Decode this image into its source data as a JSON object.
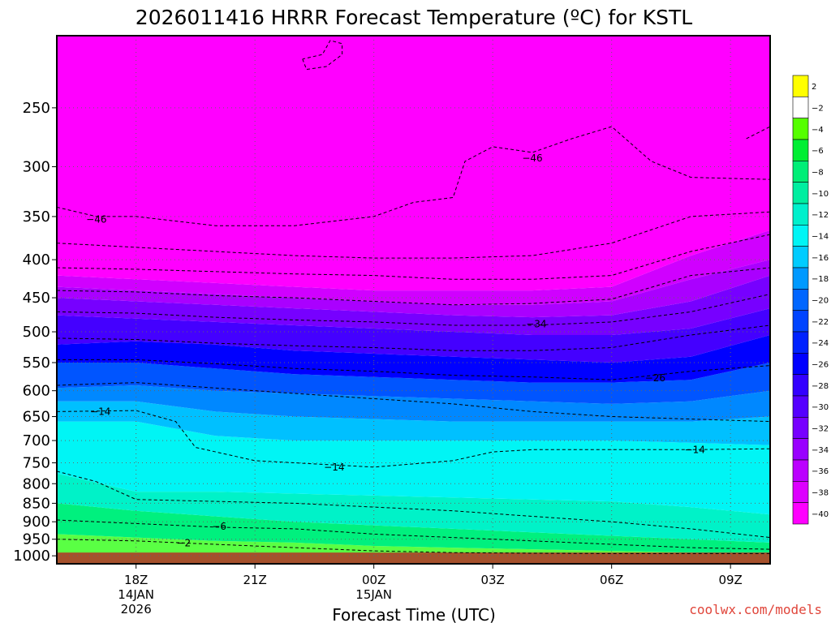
{
  "chart_data": {
    "type": "heatmap",
    "title": "2026011416 HRRR Forecast Temperature (ºC) for KSTL",
    "xlabel": "Forecast Time (UTC)",
    "ylabel": "",
    "credit": "coolwx.com/models",
    "x_ticks": [
      {
        "hour": 18,
        "label": "18Z",
        "date": "14JAN",
        "year": "2026"
      },
      {
        "hour": 21,
        "label": "21Z"
      },
      {
        "hour": 24,
        "label": "00Z",
        "date": "15JAN"
      },
      {
        "hour": 27,
        "label": "03Z"
      },
      {
        "hour": 30,
        "label": "06Z"
      },
      {
        "hour": 33,
        "label": "09Z"
      }
    ],
    "x_range_hours": [
      16,
      34
    ],
    "y_axis": {
      "scale": "log",
      "inverted": true,
      "range_hpa": [
        1025,
        200
      ]
    },
    "y_ticks": [
      250,
      300,
      350,
      400,
      450,
      500,
      550,
      600,
      650,
      700,
      750,
      800,
      850,
      900,
      950,
      1000
    ],
    "colorbar": {
      "levels": [
        2,
        -2,
        -4,
        -6,
        -8,
        -10,
        -12,
        -14,
        -16,
        -18,
        -20,
        -22,
        -24,
        -26,
        -28,
        -30,
        -32,
        -34,
        -36,
        -38,
        -40
      ],
      "colors": [
        "#ffff00",
        "#ffffff",
        "#55ff00",
        "#00ee33",
        "#00ee77",
        "#00eea0",
        "#00f0cc",
        "#00f5f5",
        "#00ccff",
        "#0099ff",
        "#0066ff",
        "#0044ff",
        "#0022ff",
        "#0000ff",
        "#3300ff",
        "#5500ff",
        "#7700ff",
        "#9900ff",
        "#bb00ff",
        "#dd00ff",
        "#ff00ff"
      ]
    },
    "band_colors": [
      "#5aff44",
      "#00f07e",
      "#00f2c8",
      "#00f5f5",
      "#00c0ff",
      "#0088ff",
      "#0055ff",
      "#0000ff",
      "#4400ff",
      "#7700ff",
      "#aa00ff",
      "#d000ff",
      "#ff00ff"
    ],
    "band_tops_hpa": [
      {
        "hour": 16,
        "tops": [
          935,
          850,
          775,
          660,
          620,
          595,
          550,
          520,
          475,
          450,
          435,
          420
        ]
      },
      {
        "hour": 18,
        "tops": [
          945,
          870,
          820,
          660,
          620,
          590,
          550,
          515,
          480,
          455,
          440,
          425
        ]
      },
      {
        "hour": 20,
        "tops": [
          955,
          885,
          820,
          690,
          640,
          600,
          560,
          520,
          485,
          460,
          445,
          430
        ]
      },
      {
        "hour": 22,
        "tops": [
          960,
          900,
          825,
          700,
          650,
          605,
          570,
          530,
          490,
          465,
          450,
          435
        ]
      },
      {
        "hour": 24,
        "tops": [
          970,
          910,
          830,
          700,
          655,
          610,
          575,
          535,
          495,
          470,
          455,
          440
        ]
      },
      {
        "hour": 26,
        "tops": [
          975,
          920,
          835,
          700,
          660,
          615,
          580,
          540,
          500,
          475,
          460,
          440
        ]
      },
      {
        "hour": 28,
        "tops": [
          980,
          930,
          840,
          700,
          660,
          620,
          585,
          545,
          505,
          478,
          460,
          440
        ]
      },
      {
        "hour": 30,
        "tops": [
          985,
          940,
          845,
          700,
          660,
          625,
          585,
          550,
          505,
          475,
          455,
          435
        ]
      },
      {
        "hour": 32,
        "tops": [
          990,
          950,
          860,
          705,
          660,
          620,
          580,
          540,
          495,
          455,
          425,
          395
        ]
      },
      {
        "hour": 34,
        "tops": [
          995,
          960,
          880,
          710,
          650,
          600,
          550,
          505,
          465,
          420,
          400,
          365
        ]
      }
    ],
    "surface_hpa": [
      {
        "hour": 16,
        "p": 990
      },
      {
        "hour": 34,
        "p": 990
      }
    ],
    "contours": [
      {
        "label": "-2",
        "points": [
          [
            16,
            950
          ],
          [
            18,
            955
          ],
          [
            20,
            965
          ],
          [
            22,
            975
          ],
          [
            24,
            985
          ],
          [
            26,
            990
          ],
          [
            28,
            992
          ],
          [
            30,
            993
          ],
          [
            32,
            993
          ],
          [
            34,
            993
          ]
        ],
        "labels": [
          [
            19.2,
            961
          ]
        ]
      },
      {
        "label": "-6",
        "points": [
          [
            16,
            895
          ],
          [
            18,
            905
          ],
          [
            20,
            915
          ],
          [
            22,
            920
          ],
          [
            24,
            935
          ],
          [
            26,
            945
          ],
          [
            28,
            955
          ],
          [
            30,
            965
          ],
          [
            32,
            975
          ],
          [
            34,
            980
          ]
        ],
        "labels": [
          [
            20.1,
            913
          ]
        ]
      },
      {
        "label": "",
        "points": [
          [
            16,
            770
          ],
          [
            17,
            795
          ],
          [
            18,
            840
          ],
          [
            20,
            845
          ],
          [
            22,
            850
          ],
          [
            24,
            860
          ],
          [
            26,
            870
          ],
          [
            28,
            885
          ],
          [
            30,
            900
          ],
          [
            32,
            920
          ],
          [
            34,
            945
          ]
        ],
        "labels": []
      },
      {
        "label": "-14",
        "points": [
          [
            16,
            640
          ],
          [
            18,
            638
          ],
          [
            19,
            660
          ],
          [
            19.5,
            715
          ],
          [
            21,
            745
          ],
          [
            23,
            755
          ],
          [
            24,
            760
          ],
          [
            26,
            745
          ],
          [
            27,
            725
          ],
          [
            28,
            720
          ],
          [
            30,
            720
          ],
          [
            32,
            720
          ],
          [
            34,
            718
          ]
        ],
        "labels": [
          [
            17.1,
            640
          ],
          [
            23.0,
            760
          ],
          [
            32.1,
            720
          ]
        ]
      },
      {
        "label": "",
        "points": [
          [
            16,
            590
          ],
          [
            18,
            585
          ],
          [
            20,
            595
          ],
          [
            22,
            605
          ],
          [
            24,
            615
          ],
          [
            26,
            625
          ],
          [
            28,
            640
          ],
          [
            30,
            650
          ],
          [
            32,
            655
          ],
          [
            34,
            660
          ]
        ],
        "labels": []
      },
      {
        "label": "-26",
        "points": [
          [
            16,
            545
          ],
          [
            18,
            545
          ],
          [
            20,
            552
          ],
          [
            22,
            560
          ],
          [
            24,
            565
          ],
          [
            26,
            572
          ],
          [
            28,
            575
          ],
          [
            30,
            580
          ],
          [
            32,
            565
          ],
          [
            34,
            555
          ]
        ],
        "labels": [
          [
            31.1,
            577
          ]
        ]
      },
      {
        "label": "",
        "points": [
          [
            16,
            510
          ],
          [
            18,
            512
          ],
          [
            20,
            518
          ],
          [
            22,
            522
          ],
          [
            24,
            525
          ],
          [
            26,
            530
          ],
          [
            28,
            530
          ],
          [
            30,
            525
          ],
          [
            32,
            505
          ],
          [
            34,
            490
          ]
        ],
        "labels": []
      },
      {
        "label": "-34",
        "points": [
          [
            16,
            470
          ],
          [
            18,
            472
          ],
          [
            20,
            478
          ],
          [
            22,
            482
          ],
          [
            24,
            485
          ],
          [
            26,
            490
          ],
          [
            28,
            490
          ],
          [
            30,
            485
          ],
          [
            32,
            470
          ],
          [
            34,
            445
          ]
        ],
        "labels": [
          [
            28.1,
            488
          ]
        ]
      },
      {
        "label": "",
        "points": [
          [
            16,
            440
          ],
          [
            18,
            442
          ],
          [
            20,
            447
          ],
          [
            22,
            450
          ],
          [
            24,
            455
          ],
          [
            26,
            460
          ],
          [
            28,
            458
          ],
          [
            30,
            452
          ],
          [
            32,
            420
          ],
          [
            34,
            410
          ]
        ],
        "labels": []
      },
      {
        "label": "",
        "points": [
          [
            16,
            410
          ],
          [
            18,
            412
          ],
          [
            20,
            415
          ],
          [
            22,
            418
          ],
          [
            24,
            420
          ],
          [
            26,
            425
          ],
          [
            28,
            425
          ],
          [
            30,
            420
          ],
          [
            32,
            390
          ],
          [
            34,
            370
          ]
        ],
        "labels": []
      },
      {
        "label": "",
        "points": [
          [
            16,
            380
          ],
          [
            18,
            385
          ],
          [
            20,
            390
          ],
          [
            22,
            395
          ],
          [
            24,
            398
          ],
          [
            26,
            398
          ],
          [
            28,
            395
          ],
          [
            30,
            380
          ],
          [
            32,
            350
          ],
          [
            34,
            345
          ]
        ],
        "labels": []
      },
      {
        "label": "-46",
        "points": [
          [
            16,
            340
          ],
          [
            17,
            350
          ],
          [
            18,
            350
          ],
          [
            20,
            360
          ],
          [
            22,
            360
          ],
          [
            24,
            350
          ],
          [
            25,
            335
          ],
          [
            26,
            330
          ],
          [
            26.3,
            295
          ],
          [
            27,
            282
          ],
          [
            28,
            287
          ],
          [
            29,
            275
          ],
          [
            30,
            265
          ],
          [
            31,
            295
          ],
          [
            32,
            310
          ],
          [
            34,
            312
          ]
        ],
        "labels": [
          [
            17.0,
            353
          ],
          [
            28.0,
            292
          ]
        ]
      },
      {
        "label": "",
        "points": [
          [
            33.4,
            275
          ],
          [
            34,
            265
          ]
        ],
        "labels": []
      },
      {
        "label": "",
        "points": [
          [
            22.2,
            215
          ],
          [
            22.3,
            222
          ],
          [
            22.8,
            220
          ],
          [
            23.2,
            212
          ],
          [
            23.2,
            205
          ],
          [
            22.9,
            203
          ],
          [
            22.7,
            212
          ],
          [
            22.2,
            215
          ]
        ],
        "labels": []
      }
    ]
  }
}
